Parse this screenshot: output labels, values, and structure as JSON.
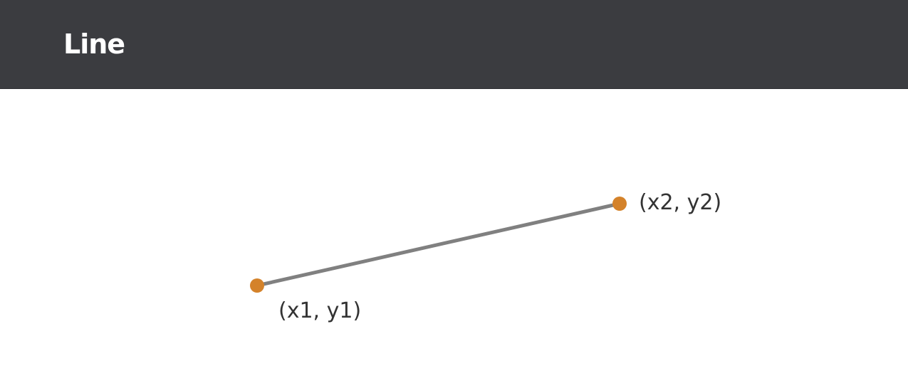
{
  "header": {
    "title": "Line"
  },
  "diagram": {
    "start_label": "(x1, y1)",
    "end_label": "(x2, y2)",
    "line_color": "#808080",
    "point_color": "#d4822a"
  }
}
